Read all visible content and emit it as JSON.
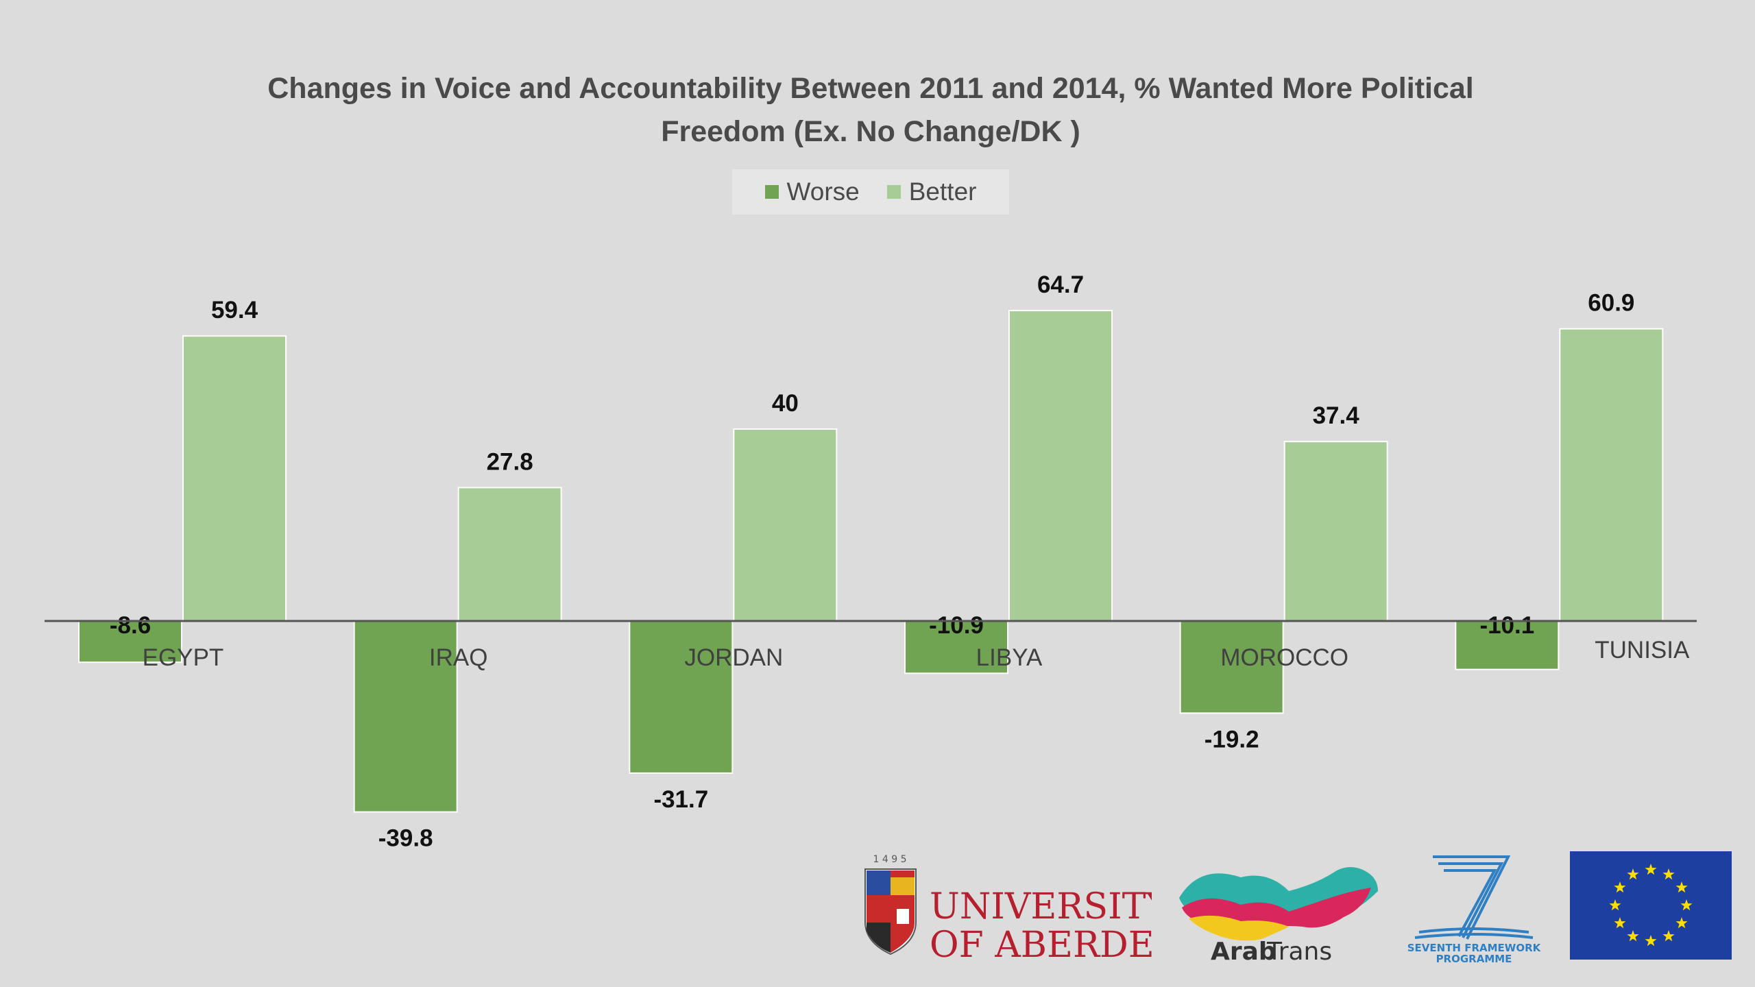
{
  "chart_data": {
    "type": "bar",
    "title": "Changes in Voice and Accountability Between 2011 and 2014, % Wanted More Political Freedom (Ex. No Change/DK )",
    "categories": [
      "EGYPT",
      "IRAQ",
      "JORDAN",
      "LIBYA",
      "MOROCCO",
      "TUNISIA"
    ],
    "series": [
      {
        "name": "Worse",
        "values": [
          -8.6,
          -39.8,
          -31.7,
          -10.9,
          -19.2,
          -10.1
        ],
        "labels": [
          "-8.6",
          "-39.8",
          "-31.7",
          "-10.9",
          "-19.2",
          "-10.1"
        ],
        "color": "#70a452"
      },
      {
        "name": "Better",
        "values": [
          59.4,
          27.8,
          40,
          64.7,
          37.4,
          60.9
        ],
        "labels": [
          "59.4",
          "27.8",
          "40",
          "64.7",
          "37.4",
          "60.9"
        ],
        "color": "#a8cc96"
      }
    ],
    "ylim": [
      -60,
      70
    ],
    "grid": false,
    "legend_position": "top-center"
  },
  "logos": {
    "aberdeen": {
      "year": "1 4 9 5",
      "line1": "UNIVERSITY",
      "line2": "OF ABERDEEN"
    },
    "arabtrans": {
      "part1": "Arab",
      "part2": "Trans"
    },
    "fp7": {
      "line1": "SEVENTH FRAMEWORK",
      "line2": "PROGRAMME"
    }
  },
  "colors": {
    "background": "#dcdcdc",
    "axis": "#555555",
    "text": "#4a4a4a",
    "eu_blue": "#1d3fa0",
    "eu_star": "#ffdd00",
    "aberdeen_red": "#b51f2e"
  }
}
